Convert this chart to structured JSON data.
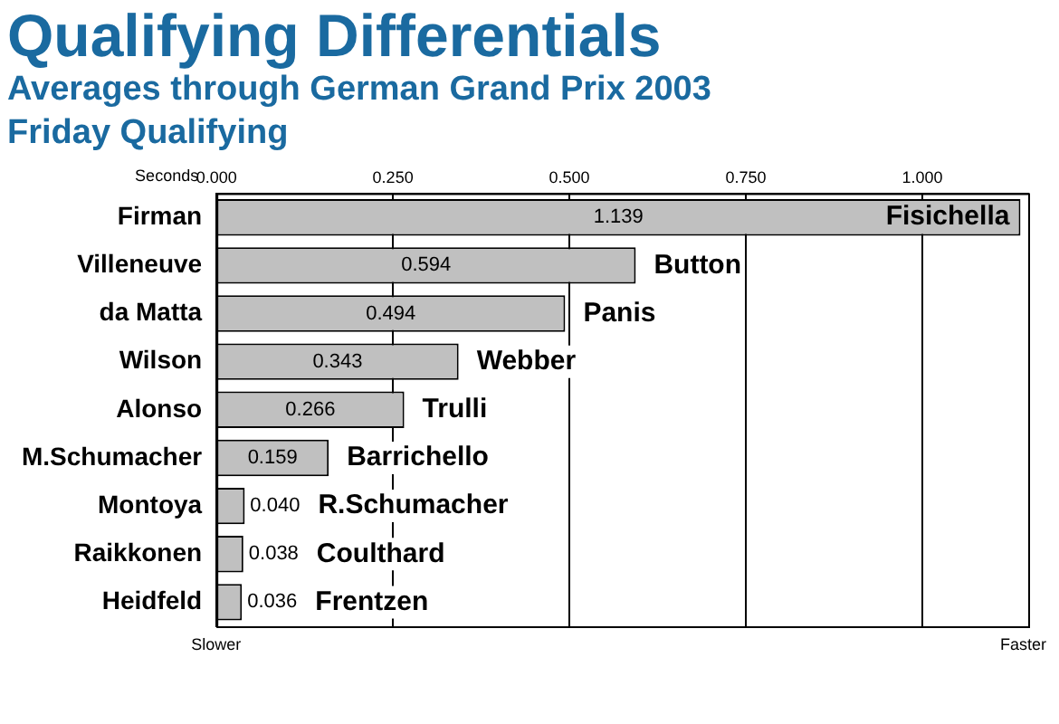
{
  "chart_data": {
    "type": "bar",
    "orientation": "horizontal",
    "title": "Qualifying Differentials",
    "subtitle": "Averages through German Grand Prix 2003\nFriday Qualifying",
    "xlabel": "Seconds",
    "categories": [
      "Firman",
      "Villeneuve",
      "da Matta",
      "Wilson",
      "Alonso",
      "M.Schumacher",
      "Montoya",
      "Raikkonen",
      "Heidfeld"
    ],
    "values": [
      1.139,
      0.594,
      0.494,
      0.343,
      0.266,
      0.159,
      0.04,
      0.038,
      0.036
    ],
    "color": "#c0c0c0",
    "value_labels": [
      "1.139",
      "0.594",
      "0.494",
      "0.343",
      "0.266",
      "0.159",
      "0.040",
      "0.038",
      "0.036"
    ],
    "xlim": [
      0,
      1.15
    ],
    "xticks": [
      {
        "value": 0,
        "label": "0.000"
      },
      {
        "value": 0.25,
        "label": "0.250"
      },
      {
        "value": 0.5,
        "label": "0.500"
      },
      {
        "value": 0.75,
        "label": "0.750"
      },
      {
        "value": 1,
        "label": "1.000"
      }
    ],
    "grid": "x",
    "legend": false,
    "annotations": [
      {
        "text": "Fisichella",
        "x": 1.139,
        "y": "Firman"
      },
      {
        "text": "Button",
        "x": 0.594,
        "y": "Villeneuve"
      },
      {
        "text": "Panis",
        "x": 0.494,
        "y": "da Matta"
      },
      {
        "text": "Webber",
        "x": 0.343,
        "y": "Wilson"
      },
      {
        "text": "Trulli",
        "x": 0.266,
        "y": "Alonso"
      },
      {
        "text": "Barrichello",
        "x": 0.159,
        "y": "M.Schumacher"
      },
      {
        "text": "R.Schumacher",
        "x": 0.04,
        "y": "Montoya"
      },
      {
        "text": "Coulthard",
        "x": 0.038,
        "y": "Raikkonen"
      },
      {
        "text": "Frentzen",
        "x": 0.036,
        "y": "Heidfeld"
      },
      "Slower",
      "Faster"
    ]
  }
}
